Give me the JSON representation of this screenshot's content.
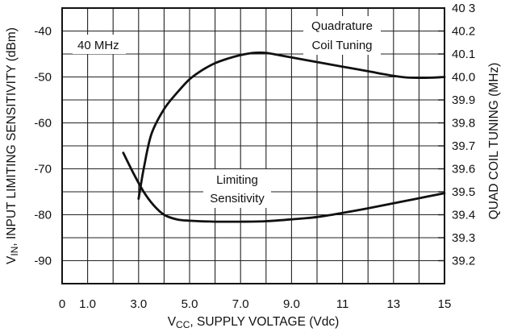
{
  "chart_data": {
    "type": "line",
    "title": "",
    "xlabel_parts": [
      "V",
      "CC",
      ", SUPPLY VOLTAGE (Vdc)"
    ],
    "ylabel_left_parts": [
      "V",
      "IN",
      ",  INPUT LIMITING SENSITIVITY (dBm)"
    ],
    "ylabel_right": "QUAD COIL TUNING (MHz)",
    "xlim": [
      0,
      15
    ],
    "ylim_left": [
      -95,
      -35
    ],
    "ylim_right": [
      39.1,
      40.3
    ],
    "x_ticks": [
      {
        "value": 0,
        "label": "0"
      },
      {
        "value": 1,
        "label": "1.0"
      },
      {
        "value": 3,
        "label": "3.0"
      },
      {
        "value": 5,
        "label": "5.0"
      },
      {
        "value": 7,
        "label": "7.0"
      },
      {
        "value": 9,
        "label": "9.0"
      },
      {
        "value": 11,
        "label": "11"
      },
      {
        "value": 13,
        "label": "13"
      },
      {
        "value": 15,
        "label": "15"
      }
    ],
    "y_ticks_left": [
      {
        "value": -40,
        "label": "-40"
      },
      {
        "value": -50,
        "label": "-50"
      },
      {
        "value": -60,
        "label": "-60"
      },
      {
        "value": -70,
        "label": "-70"
      },
      {
        "value": -80,
        "label": "-80"
      },
      {
        "value": -90,
        "label": "-90"
      }
    ],
    "y_ticks_right": [
      {
        "value": 40.3,
        "label": "40 3"
      },
      {
        "value": 40.2,
        "label": "40.2"
      },
      {
        "value": 40.1,
        "label": "40.1"
      },
      {
        "value": 40.0,
        "label": "40.0"
      },
      {
        "value": 39.9,
        "label": "39.9"
      },
      {
        "value": 39.8,
        "label": "39.8"
      },
      {
        "value": 39.7,
        "label": "39.7"
      },
      {
        "value": 39.6,
        "label": "39.6"
      },
      {
        "value": 39.5,
        "label": "39.5"
      },
      {
        "value": 39.4,
        "label": "39.4"
      },
      {
        "value": 39.3,
        "label": "39.3"
      },
      {
        "value": 39.2,
        "label": "39.2"
      }
    ],
    "grid_x": [
      1,
      2,
      3,
      4,
      5,
      6,
      7,
      8,
      9,
      10,
      11,
      12,
      13,
      14
    ],
    "grid_y_left": [
      -40,
      -45,
      -50,
      -55,
      -60,
      -65,
      -70,
      -75,
      -80,
      -85,
      -90
    ],
    "grid": true,
    "series": [
      {
        "name": "Quadrature Coil Tuning",
        "axis": "right",
        "points": [
          [
            3.0,
            39.47
          ],
          [
            3.2,
            39.6
          ],
          [
            3.5,
            39.75
          ],
          [
            4.0,
            39.86
          ],
          [
            4.5,
            39.93
          ],
          [
            5.0,
            39.99
          ],
          [
            5.5,
            40.03
          ],
          [
            6.0,
            40.06
          ],
          [
            6.5,
            40.08
          ],
          [
            7.0,
            40.095
          ],
          [
            7.5,
            40.105
          ],
          [
            8.0,
            40.105
          ],
          [
            8.5,
            40.095
          ],
          [
            9.0,
            40.085
          ],
          [
            10.0,
            40.065
          ],
          [
            11.0,
            40.045
          ],
          [
            12.0,
            40.025
          ],
          [
            13.0,
            40.005
          ],
          [
            13.5,
            39.998
          ],
          [
            14.0,
            39.996
          ],
          [
            14.5,
            39.997
          ],
          [
            15.0,
            40.0
          ]
        ]
      },
      {
        "name": "Limiting Sensitivity",
        "axis": "left",
        "points": [
          [
            2.4,
            -66.5
          ],
          [
            2.8,
            -71
          ],
          [
            3.2,
            -75
          ],
          [
            3.6,
            -78
          ],
          [
            4.0,
            -80
          ],
          [
            4.5,
            -81
          ],
          [
            5.0,
            -81.3
          ],
          [
            6.0,
            -81.5
          ],
          [
            7.0,
            -81.5
          ],
          [
            8.0,
            -81.4
          ],
          [
            9.0,
            -81
          ],
          [
            10.0,
            -80.5
          ],
          [
            11.0,
            -79.6
          ],
          [
            12.0,
            -78.6
          ],
          [
            13.0,
            -77.5
          ],
          [
            14.0,
            -76.4
          ],
          [
            15.0,
            -75.3
          ]
        ]
      }
    ],
    "annotations": {
      "freq": "40 MHz",
      "quad_line1": "Quadrature",
      "quad_line2": "Coil Tuning",
      "lim_line1": "Limiting",
      "lim_line2": "Sensitivity"
    }
  }
}
